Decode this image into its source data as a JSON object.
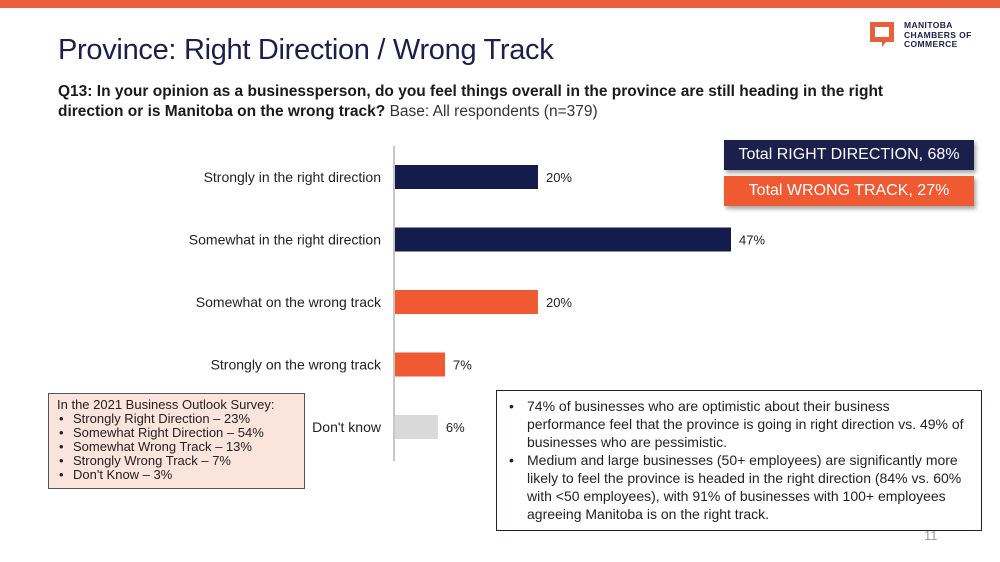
{
  "brand": {
    "accent": "#e8603c",
    "navy": "#1b1f4b",
    "logo_lines": [
      "MANITOBA",
      "CHAMBERS OF",
      "COMMERCE"
    ]
  },
  "title": "Province: Right Direction / Wrong Track",
  "question": {
    "text": "Q13: In your opinion as a businessperson, do you feel things overall in the province are still heading in the right direction or is Manitoba on the wrong track?",
    "base": "Base: All respondents (n=379)"
  },
  "chart_data": {
    "type": "bar",
    "orientation": "horizontal",
    "categories": [
      "Strongly in the right direction",
      "Somewhat in the right direction",
      "Somewhat on the wrong track",
      "Strongly on the wrong track",
      "Don't know"
    ],
    "values": [
      20,
      47,
      20,
      7,
      6
    ],
    "value_labels": [
      "20%",
      "47%",
      "20%",
      "7%",
      "6%"
    ],
    "colors": [
      "#141b4d",
      "#141b4d",
      "#f05a33",
      "#f05a33",
      "#d9d9d9"
    ],
    "title": "",
    "xlabel": "",
    "ylabel": "",
    "xlim": [
      0,
      50
    ],
    "grid": false,
    "legend": "none"
  },
  "totals": {
    "right": {
      "label": "Total RIGHT DIRECTION, 68%",
      "color": "#1b1f4b"
    },
    "wrong": {
      "label": "Total WRONG TRACK, 27%",
      "color": "#f05a33"
    }
  },
  "outlook_box": {
    "heading": "In the 2021 Business Outlook Survey:",
    "items": [
      "Strongly Right Direction – 23%",
      "Somewhat Right Direction – 54%",
      "Somewhat Wrong Track – 13%",
      "Strongly Wrong Track – 7%",
      "Don't Know – 3%"
    ],
    "background": "#fbe4dc"
  },
  "notes": [
    "74% of businesses who are optimistic about their business performance feel that the province is going in right direction vs. 49% of businesses who are pessimistic.",
    "Medium and large businesses (50+ employees) are significantly more likely to feel the province is headed in the right direction (84% vs. 60% with <50 employees), with 91% of businesses with 100+ employees agreeing Manitoba is on the right track."
  ],
  "page_number": "11"
}
